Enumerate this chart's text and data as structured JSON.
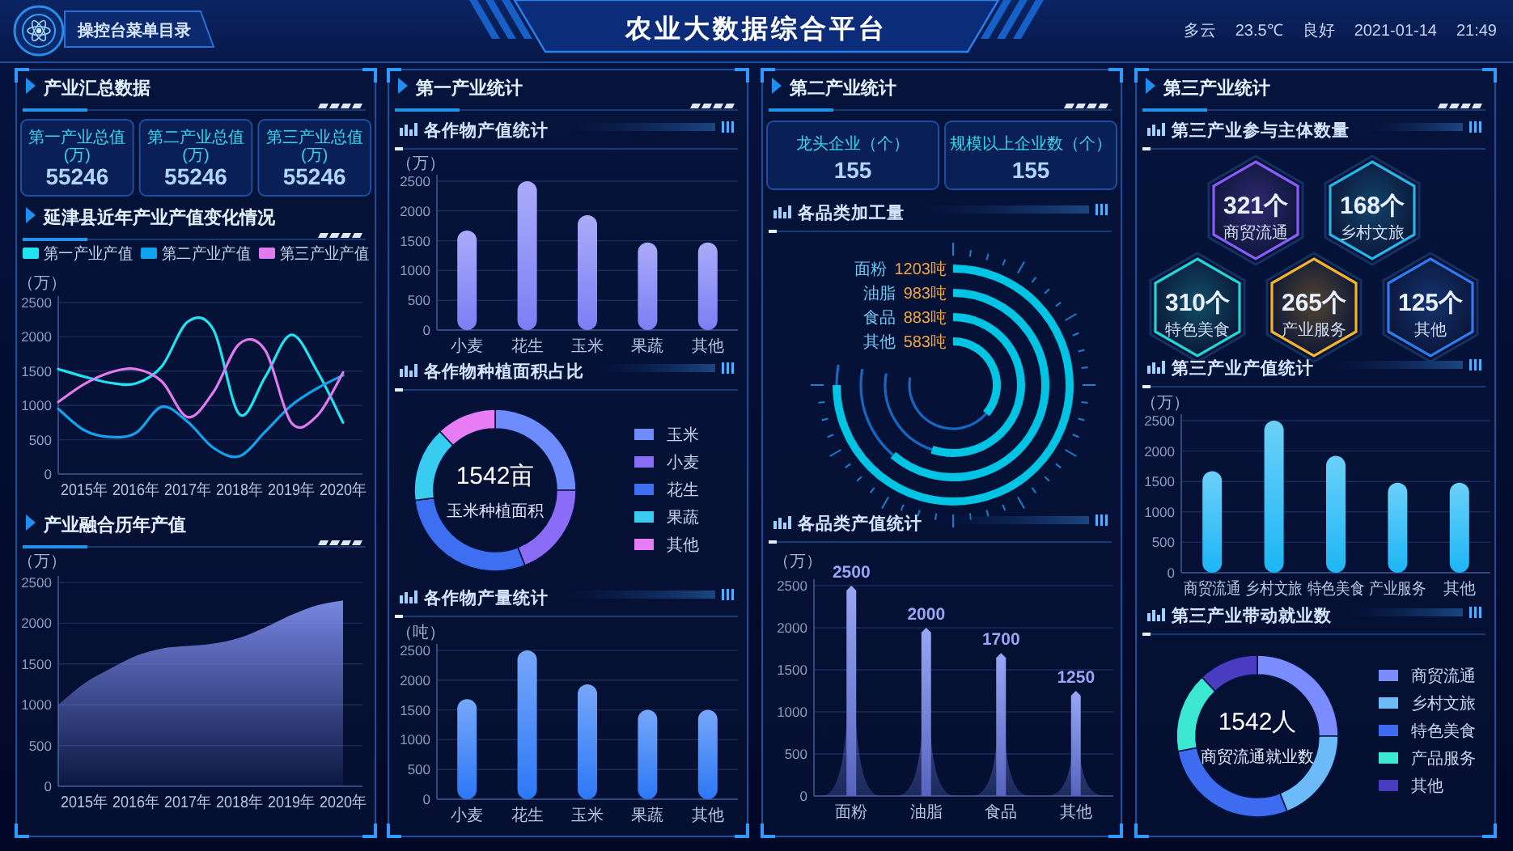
{
  "chart_data": [
    {
      "type": "other",
      "title": "农业大数据综合平台",
      "annotations": [
        "操控台菜单目录",
        "多云",
        "23.5℃",
        "良好",
        "2021-01-14",
        "21:49"
      ]
    },
    {
      "type": "other",
      "title": "产业汇总数据",
      "categories": [
        "第一产业总值(万)",
        "第二产业总值(万)",
        "第三产业总值(万)"
      ],
      "values": [
        55246,
        55246,
        55246
      ],
      "data_labels": true
    },
    {
      "type": "line",
      "title": "延津县近年产业产值变化情况",
      "ylabel": "（万）",
      "categories": [
        null,
        "2015年",
        null,
        "2016年",
        null,
        "2017年",
        null,
        "2018年",
        null,
        "2019年",
        null,
        "2020年"
      ],
      "series": [
        {
          "name": "第一产业产值",
          "color": "#1fe3f0",
          "values": [
            1530,
            1420,
            1330,
            1320,
            1570,
            2220,
            2100,
            870,
            1420,
            2030,
            1500,
            750
          ]
        },
        {
          "name": "第二产业产值",
          "color": "#13a2ee",
          "values": [
            950,
            640,
            540,
            600,
            980,
            760,
            380,
            260,
            620,
            1000,
            1250,
            1440
          ]
        },
        {
          "name": "第三产业产值",
          "color": "#df7bef",
          "values": [
            1050,
            1310,
            1480,
            1530,
            1350,
            830,
            1200,
            1900,
            1800,
            750,
            850,
            1480
          ]
        }
      ],
      "ylim": [
        0,
        2500
      ],
      "yticks": [
        0,
        500,
        1000,
        1500,
        2000,
        2500
      ],
      "grid": "y",
      "legend": "top"
    },
    {
      "type": "area",
      "title": "产业融合历年产值",
      "ylabel": "（万）",
      "categories": [
        null,
        "2015年",
        null,
        "2016年",
        null,
        "2017年",
        null,
        "2018年",
        null,
        "2019年",
        null,
        "2020年"
      ],
      "values": [
        1000,
        1260,
        1440,
        1600,
        1690,
        1720,
        1750,
        1820,
        1950,
        2100,
        2220,
        2280
      ],
      "color": "#7080e8",
      "ylim": [
        0,
        2500
      ],
      "yticks": [
        0,
        500,
        1000,
        1500,
        2000,
        2500
      ],
      "grid": "y"
    },
    {
      "type": "other",
      "title": "第一产业统计"
    },
    {
      "type": "bar",
      "title": "各作物产值统计",
      "ylabel": "（万）",
      "categories": [
        "小麦",
        "花生",
        "玉米",
        "果蔬",
        "其他"
      ],
      "values": [
        1670,
        2500,
        1930,
        1470,
        1470
      ],
      "color": "#7c7ef5",
      "ylim": [
        0,
        2500
      ],
      "yticks": [
        0,
        500,
        1000,
        1500,
        2000,
        2500
      ],
      "grid": "y"
    },
    {
      "type": "donut",
      "title": "各作物种植面积占比",
      "categories": [
        "玉米",
        "小麦",
        "花生",
        "果蔬",
        "其他"
      ],
      "values": [
        25,
        19,
        29,
        15,
        12
      ],
      "colors": [
        "#6f8cff",
        "#8b6cf6",
        "#3e6ff0",
        "#38cdf0",
        "#e77cf4"
      ],
      "legend": "right",
      "annotations": [
        "1542亩",
        "玉米种植面积"
      ]
    },
    {
      "type": "bar",
      "title": "各作物产量统计",
      "ylabel": "（吨）",
      "categories": [
        "小麦",
        "花生",
        "玉米",
        "果蔬",
        "其他"
      ],
      "values": [
        1680,
        2500,
        1930,
        1500,
        1500
      ],
      "color": "#2c78f6",
      "ylim": [
        0,
        2500
      ],
      "yticks": [
        0,
        500,
        1000,
        1500,
        2000,
        2500
      ],
      "grid": "y"
    },
    {
      "type": "other",
      "title": "第二产业统计",
      "categories": [
        "龙头企业（个）",
        "规模以上企业数（个）"
      ],
      "values": [
        155,
        155
      ],
      "data_labels": true
    },
    {
      "type": "other",
      "title": "各品类加工量",
      "categories": [
        "面粉",
        "油脂",
        "食品",
        "其他"
      ],
      "values": [
        1203,
        983,
        883,
        583
      ],
      "value_labels": [
        "1203吨",
        "983吨",
        "883吨",
        "583吨"
      ],
      "color": "#00c4e4"
    },
    {
      "type": "bar",
      "title": "各品类产值统计",
      "ylabel": "（万）",
      "categories": [
        "面粉",
        "油脂",
        "食品",
        "其他"
      ],
      "values": [
        2500,
        2000,
        1700,
        1250
      ],
      "color": "#7688f2",
      "data_labels": true,
      "ylim": [
        0,
        2500
      ],
      "yticks": [
        0,
        500,
        1000,
        1500,
        2000,
        2500
      ],
      "grid": "y"
    },
    {
      "type": "other",
      "title": "第三产业统计"
    },
    {
      "type": "other",
      "title": "第三产业参与主体数量",
      "categories": [
        "商贸流通",
        "乡村文旅",
        "特色美食",
        "产业服务",
        "其他"
      ],
      "value_labels": [
        "321个",
        "168个",
        "310个",
        "265个",
        "125个"
      ],
      "colors": [
        "#8a5cf6",
        "#27b4e6",
        "#22d6d6",
        "#f2b42c",
        "#2f7bf0"
      ]
    },
    {
      "type": "bar",
      "title": "第三产业产值统计",
      "ylabel": "（万）",
      "categories": [
        "商贸流通",
        "乡村文旅",
        "特色美食",
        "产业服务",
        "其他"
      ],
      "values": [
        1670,
        2500,
        1920,
        1480,
        1480
      ],
      "color": "#1cb6f6",
      "ylim": [
        0,
        2500
      ],
      "yticks": [
        0,
        500,
        1000,
        1500,
        2000,
        2500
      ],
      "grid": "y"
    },
    {
      "type": "donut",
      "title": "第三产业带动就业数",
      "categories": [
        "商贸流通",
        "乡村文旅",
        "特色美食",
        "产品服务",
        "其他"
      ],
      "values": [
        25,
        19,
        28,
        16,
        12
      ],
      "colors": [
        "#7b8cff",
        "#6cbaf7",
        "#3d6cf0",
        "#3de8d2",
        "#4a3cc0"
      ],
      "legend": "right",
      "annotations": [
        "1542人",
        "商贸流通就业数"
      ]
    }
  ]
}
